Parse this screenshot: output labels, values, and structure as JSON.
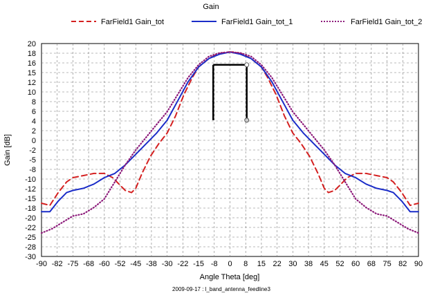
{
  "chart_data": {
    "type": "line",
    "title": "Gain",
    "xlabel": "Angle Theta [deg]",
    "ylabel": "Gain [dB]",
    "footnote": "2009-09-17 : l_band_antenna_feedline3",
    "xlim": [
      -90,
      90
    ],
    "ylim": [
      -30,
      20
    ],
    "x_ticks": [
      "-90",
      "-82",
      "-75",
      "-68",
      "-60",
      "-52",
      "-45",
      "-38",
      "-30",
      "-22",
      "-15",
      "-8",
      "0",
      "8",
      "15",
      "22",
      "30",
      "38",
      "45",
      "52",
      "60",
      "68",
      "75",
      "82",
      "90"
    ],
    "y_ticks": [
      20,
      18,
      16,
      15,
      12,
      10,
      8,
      6,
      4,
      2,
      0,
      -2,
      -5,
      -8,
      -10,
      -12,
      -15,
      -18,
      -20,
      -22,
      -25,
      -28,
      -30
    ],
    "grid": true,
    "legend_position": "top",
    "series": [
      {
        "name": "FarField1 Gain_tot",
        "color": "#d42020",
        "dash": "dashed",
        "x": [
          -90,
          -86,
          -82,
          -78,
          -75,
          -70,
          -65,
          -60,
          -56,
          -53,
          -50,
          -47,
          -45,
          -42,
          -38,
          -34,
          -30,
          -26,
          -22,
          -18,
          -15,
          -10,
          -6,
          -2,
          0,
          2,
          6,
          10,
          15,
          18,
          22,
          26,
          30,
          34,
          38,
          42,
          45,
          47,
          50,
          53,
          56,
          60,
          65,
          70,
          75,
          78,
          82,
          86,
          90
        ],
        "y": [
          -17.5,
          -18,
          -15,
          -12.5,
          -11.5,
          -11,
          -10.5,
          -10.5,
          -11.5,
          -13,
          -14.5,
          -15,
          -14,
          -10.5,
          -6.5,
          -3.5,
          -1,
          3,
          8,
          12,
          14.5,
          16.5,
          17.5,
          18,
          18,
          18,
          17.5,
          16.5,
          14.5,
          12,
          8,
          3,
          -1,
          -3.5,
          -6.5,
          -10.5,
          -14,
          -15,
          -14.5,
          -13,
          -11.5,
          -10.5,
          -10.5,
          -11,
          -11.5,
          -12.5,
          -15,
          -18,
          -17.5
        ]
      },
      {
        "name": "FarField1 Gain_tot_1",
        "color": "#1a2cc8",
        "dash": "solid",
        "x": [
          -90,
          -86,
          -82,
          -78,
          -75,
          -70,
          -65,
          -60,
          -55,
          -50,
          -45,
          -40,
          -35,
          -30,
          -25,
          -20,
          -15,
          -10,
          -5,
          0,
          5,
          10,
          15,
          20,
          25,
          30,
          35,
          40,
          45,
          50,
          55,
          60,
          65,
          70,
          75,
          78,
          82,
          86,
          90
        ],
        "y": [
          -19.5,
          -19.5,
          -17,
          -15,
          -14.5,
          -14,
          -13,
          -11.5,
          -10.5,
          -8.5,
          -6,
          -3.5,
          -1,
          2,
          6.5,
          11,
          14.5,
          16.5,
          17.5,
          18,
          17.5,
          16.5,
          14.5,
          11,
          6.5,
          2,
          -1,
          -3.5,
          -6,
          -8.5,
          -10.5,
          -11.5,
          -13,
          -14,
          -14.5,
          -15,
          -17,
          -19.5,
          -19.5
        ]
      },
      {
        "name": "FarField1 Gain_tot_2",
        "color": "#8c1a7a",
        "dash": "dotted",
        "x": [
          -90,
          -85,
          -80,
          -75,
          -70,
          -65,
          -60,
          -55,
          -50,
          -45,
          -40,
          -35,
          -30,
          -25,
          -20,
          -15,
          -10,
          -5,
          0,
          5,
          10,
          15,
          20,
          25,
          30,
          35,
          40,
          45,
          50,
          55,
          60,
          65,
          70,
          75,
          80,
          85,
          90
        ],
        "y": [
          -24.5,
          -23.5,
          -22,
          -20.5,
          -20,
          -18.5,
          -16.5,
          -12.5,
          -8.5,
          -5,
          -2,
          1,
          4,
          8,
          12,
          15,
          17,
          17.8,
          18,
          17.8,
          17,
          15,
          12,
          8,
          4,
          1,
          -2,
          -5,
          -8.5,
          -12.5,
          -16.5,
          -18.5,
          -20,
          -20.5,
          -22,
          -23.5,
          -24.5
        ]
      }
    ],
    "annotation": {
      "type": "beamwidth-marker",
      "x_left": -8,
      "x_right": 8,
      "y_top": 15,
      "y_bottom": 2,
      "color": "#000000"
    }
  }
}
